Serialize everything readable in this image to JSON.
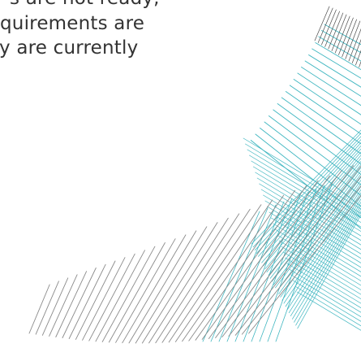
{
  "body_text": {
    "lines": [
      "s are not ready,",
      "quirements are",
      "y are currently"
    ]
  },
  "graphic": {
    "name": "decorative-line-pattern",
    "colors": {
      "teal": "#3fb6c0",
      "gray": "#8a8a8a",
      "dark": "#4a4a4a"
    }
  }
}
